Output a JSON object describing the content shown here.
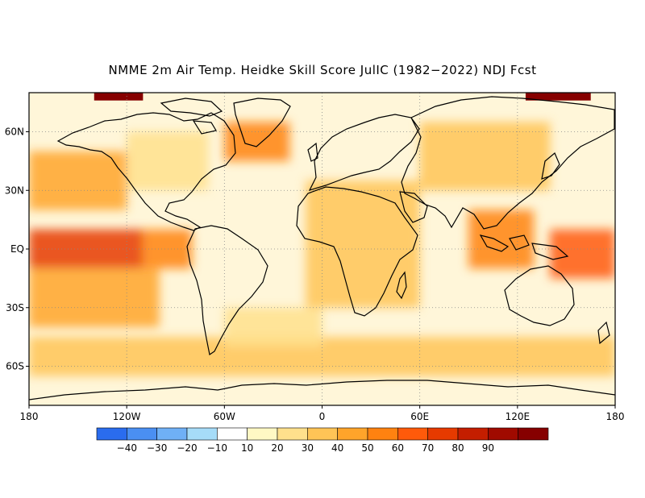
{
  "title": "NMME 2m Air Temp. Heidke Skill Score JulIC (1982−2022) NDJ Fcst",
  "map": {
    "projection": "equirectangular",
    "lon_range": [
      -180,
      180
    ],
    "lat_range": [
      -80,
      80
    ],
    "lon_ticks": [
      {
        "value": -180,
        "label": "180"
      },
      {
        "value": -120,
        "label": "120W"
      },
      {
        "value": -60,
        "label": "60W"
      },
      {
        "value": 0,
        "label": "0"
      },
      {
        "value": 60,
        "label": "60E"
      },
      {
        "value": 120,
        "label": "120E"
      },
      {
        "value": 180,
        "label": "180"
      }
    ],
    "lat_ticks": [
      {
        "value": 60,
        "label": "60N"
      },
      {
        "value": 30,
        "label": "30N"
      },
      {
        "value": 0,
        "label": "EQ"
      },
      {
        "value": -30,
        "label": "30S"
      },
      {
        "value": -60,
        "label": "60S"
      }
    ],
    "grid": "dotted",
    "coastline_color": "#000000"
  },
  "colorbar": {
    "position": "bottom",
    "colors": [
      "#2a6cee",
      "#4a8ff2",
      "#6fb0f6",
      "#a6dcf8",
      "#ffffff",
      "#fff8c4",
      "#ffe08c",
      "#ffc456",
      "#ffa42a",
      "#ff8210",
      "#ff5a0a",
      "#e63a00",
      "#c41e00",
      "#a00a00",
      "#860000"
    ],
    "labels": [
      "−40",
      "−30",
      "−20",
      "−10",
      "10",
      "20",
      "30",
      "40",
      "50",
      "60",
      "70",
      "80",
      "90"
    ]
  },
  "chart_data": {
    "type": "heatmap",
    "variable": "2m Air Temp. Heidke Skill Score",
    "x_range": [
      -180,
      180
    ],
    "y_range": [
      -80,
      80
    ],
    "regions": [
      {
        "lon": [
          -180,
          -110
        ],
        "lat": [
          -10,
          10
        ],
        "level": 60
      },
      {
        "lon": [
          -110,
          -80
        ],
        "lat": [
          -10,
          10
        ],
        "level": 45
      },
      {
        "lon": [
          140,
          180
        ],
        "lat": [
          -15,
          10
        ],
        "level": 55
      },
      {
        "lon": [
          90,
          130
        ],
        "lat": [
          -10,
          20
        ],
        "level": 45
      },
      {
        "lon": [
          -60,
          -20
        ],
        "lat": [
          45,
          65
        ],
        "level": 45
      },
      {
        "lon": [
          -180,
          -120
        ],
        "lat": [
          20,
          50
        ],
        "level": 35
      },
      {
        "lon": [
          -180,
          -100
        ],
        "lat": [
          -40,
          -10
        ],
        "level": 30
      },
      {
        "lon": [
          -10,
          60
        ],
        "lat": [
          -30,
          35
        ],
        "level": 25
      },
      {
        "lon": [
          -120,
          -70
        ],
        "lat": [
          30,
          60
        ],
        "level": 15
      },
      {
        "lon": [
          60,
          140
        ],
        "lat": [
          30,
          65
        ],
        "level": 20
      },
      {
        "lon": [
          -180,
          180
        ],
        "lat": [
          -65,
          -45
        ],
        "level": 25
      },
      {
        "lon": [
          -140,
          -110
        ],
        "lat": [
          76,
          80
        ],
        "level": 90
      },
      {
        "lon": [
          125,
          165
        ],
        "lat": [
          76,
          80
        ],
        "level": 90
      },
      {
        "lon": [
          -60,
          0
        ],
        "lat": [
          -50,
          -30
        ],
        "level": 10
      }
    ]
  }
}
